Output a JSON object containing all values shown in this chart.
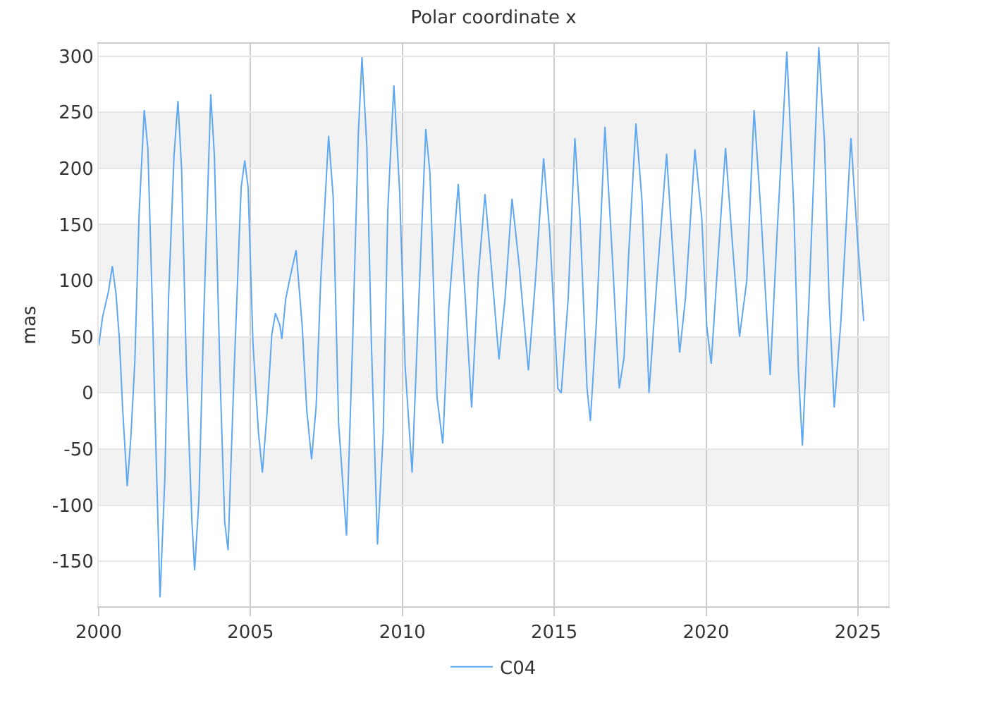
{
  "chart_data": {
    "type": "line",
    "title": "Polar coordinate x",
    "ylabel": "mas",
    "xlim": [
      2000,
      2026
    ],
    "xticks": [
      2000,
      2005,
      2010,
      2015,
      2020,
      2025
    ],
    "ylim": [
      -190,
      311
    ],
    "yticks": [
      -150,
      -100,
      -50,
      0,
      50,
      100,
      150,
      200,
      250,
      300
    ],
    "grid": true,
    "legend": "bottom",
    "marker": "none",
    "line_style": "solid",
    "bands": [
      {
        "axis": "y",
        "from": 200,
        "to": 250,
        "color": "#f2f2f2"
      },
      {
        "axis": "y",
        "from": 100,
        "to": 150,
        "color": "#f2f2f2"
      },
      {
        "axis": "y",
        "from": 0,
        "to": 50,
        "color": "#f2f2f2"
      },
      {
        "axis": "y",
        "from": -100,
        "to": -50,
        "color": "#f2f2f2"
      }
    ],
    "series": [
      {
        "name": "C04",
        "color": "#5ea8f2",
        "x": [
          2000.0,
          2000.13,
          2000.32,
          2000.45,
          2000.57,
          2000.68,
          2000.79,
          2000.94,
          2001.06,
          2001.19,
          2001.33,
          2001.5,
          2001.62,
          2001.76,
          2001.87,
          2002.02,
          2002.18,
          2002.3,
          2002.48,
          2002.61,
          2002.73,
          2002.89,
          2003.07,
          2003.16,
          2003.3,
          2003.46,
          2003.69,
          2003.81,
          2004.0,
          2004.15,
          2004.26,
          2004.46,
          2004.69,
          2004.81,
          2004.92,
          2005.08,
          2005.26,
          2005.39,
          2005.54,
          2005.7,
          2005.82,
          2005.97,
          2006.03,
          2006.16,
          2006.31,
          2006.5,
          2006.7,
          2006.85,
          2007.01,
          2007.16,
          2007.31,
          2007.57,
          2007.72,
          2007.9,
          2008.16,
          2008.36,
          2008.55,
          2008.67,
          2008.83,
          2008.98,
          2009.18,
          2009.37,
          2009.52,
          2009.72,
          2009.91,
          2010.09,
          2010.32,
          2010.52,
          2010.77,
          2010.91,
          2011.14,
          2011.33,
          2011.53,
          2011.84,
          2012.07,
          2012.28,
          2012.5,
          2012.72,
          2012.92,
          2013.18,
          2013.38,
          2013.61,
          2013.84,
          2014.15,
          2014.38,
          2014.65,
          2014.85,
          2015.12,
          2015.23,
          2015.46,
          2015.68,
          2015.85,
          2016.08,
          2016.19,
          2016.39,
          2016.67,
          2016.91,
          2017.14,
          2017.3,
          2017.45,
          2017.69,
          2017.89,
          2018.12,
          2018.39,
          2018.7,
          2018.93,
          2019.13,
          2019.32,
          2019.63,
          2019.86,
          2020.02,
          2020.17,
          2020.4,
          2020.64,
          2020.84,
          2021.1,
          2021.34,
          2021.58,
          2021.8,
          2022.11,
          2022.34,
          2022.66,
          2022.89,
          2023.04,
          2023.17,
          2023.39,
          2023.71,
          2023.9,
          2024.05,
          2024.22,
          2024.44,
          2024.77,
          2024.98,
          2025.19
        ],
        "values": [
          42,
          68,
          90,
          113,
          88,
          48,
          -15,
          -83,
          -39,
          28,
          159,
          252,
          217,
          84,
          -35,
          -182,
          -75,
          84,
          211,
          260,
          199,
          20,
          -115,
          -158,
          -95,
          68,
          266,
          211,
          12,
          -115,
          -140,
          20,
          183,
          207,
          183,
          44,
          -35,
          -71,
          -19,
          52,
          71,
          60,
          48,
          84,
          104,
          127,
          60,
          -15,
          -59,
          -12,
          100,
          229,
          175,
          -27,
          -127,
          44,
          231,
          299,
          219,
          44,
          -135,
          -35,
          163,
          274,
          179,
          24,
          -71,
          68,
          235,
          195,
          -4,
          -45,
          76,
          186,
          84,
          -13,
          104,
          177,
          115,
          30,
          84,
          173,
          115,
          20,
          100,
          209,
          143,
          4,
          0,
          84,
          227,
          155,
          4,
          -25,
          64,
          237,
          123,
          4,
          32,
          123,
          240,
          171,
          0,
          104,
          213,
          115,
          36,
          84,
          217,
          155,
          60,
          26,
          123,
          218,
          143,
          50,
          100,
          252,
          163,
          16,
          143,
          304,
          163,
          20,
          -47,
          84,
          308,
          223,
          84,
          -13,
          64,
          227,
          139,
          64
        ]
      }
    ]
  }
}
